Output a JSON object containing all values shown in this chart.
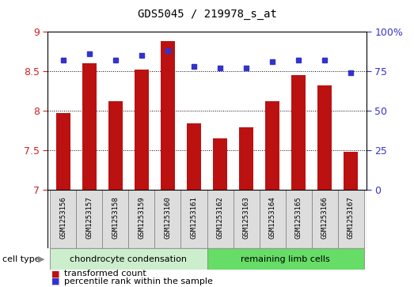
{
  "title": "GDS5045 / 219978_s_at",
  "samples": [
    "GSM1253156",
    "GSM1253157",
    "GSM1253158",
    "GSM1253159",
    "GSM1253160",
    "GSM1253161",
    "GSM1253162",
    "GSM1253163",
    "GSM1253164",
    "GSM1253165",
    "GSM1253166",
    "GSM1253167"
  ],
  "transformed_count": [
    7.97,
    8.6,
    8.12,
    8.52,
    8.88,
    7.84,
    7.65,
    7.79,
    8.12,
    8.45,
    8.32,
    7.48
  ],
  "percentile_rank": [
    82,
    86,
    82,
    85,
    88,
    78,
    77,
    77,
    81,
    82,
    82,
    74
  ],
  "bar_color": "#bb1111",
  "dot_color": "#3333cc",
  "left_ylim": [
    7.0,
    9.0
  ],
  "right_ylim": [
    0,
    100
  ],
  "left_yticks": [
    7.0,
    7.5,
    8.0,
    8.5,
    9.0
  ],
  "left_yticklabels": [
    "7",
    "7.5",
    "8",
    "8.5",
    "9"
  ],
  "right_yticks": [
    0,
    25,
    50,
    75,
    100
  ],
  "right_yticklabels": [
    "0",
    "25",
    "50",
    "75",
    "100%"
  ],
  "cell_type_groups": [
    {
      "label": "chondrocyte condensation",
      "start": 0,
      "end": 5,
      "color": "#cceecc"
    },
    {
      "label": "remaining limb cells",
      "start": 6,
      "end": 11,
      "color": "#66dd66"
    }
  ],
  "cell_type_label": "cell type",
  "legend": [
    {
      "label": "transformed count",
      "color": "#bb1111"
    },
    {
      "label": "percentile rank within the sample",
      "color": "#3333cc"
    }
  ],
  "axis_color_left": "#cc2222",
  "axis_color_right": "#3333cc",
  "bar_bottom": 7.0,
  "bar_width": 0.55,
  "spine_color": "#000000",
  "grid_linestyle": "dotted",
  "sample_box_color": "#dddddd",
  "sample_box_edge": "#888888"
}
